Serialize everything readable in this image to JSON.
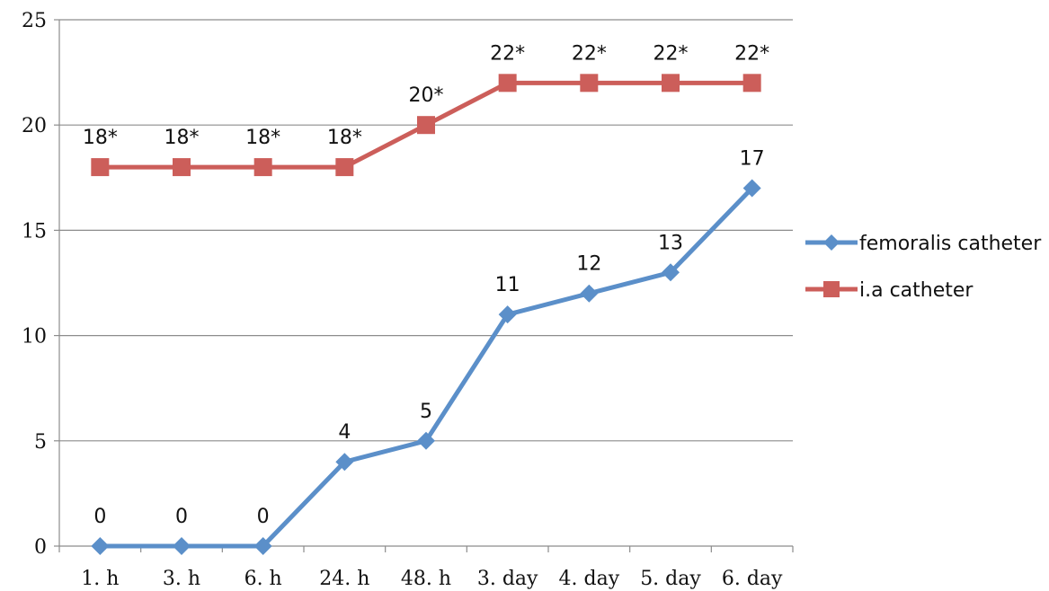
{
  "chart_data": {
    "type": "line",
    "title": "",
    "xlabel": "",
    "ylabel": "",
    "categories": [
      "1. h",
      "3. h",
      "6. h",
      "24. h",
      "48. h",
      "3. day",
      "4. day",
      "5. day",
      "6. day"
    ],
    "ylim": [
      0,
      25
    ],
    "yticks": [
      0,
      5,
      10,
      15,
      20,
      25
    ],
    "grid": true,
    "legend_position": "right",
    "series": [
      {
        "name": "femoralis catheter",
        "values": [
          0,
          0,
          0,
          4,
          5,
          11,
          12,
          13,
          17
        ],
        "labels": [
          "0",
          "0",
          "0",
          "4",
          "5",
          "11",
          "12",
          "13",
          "17"
        ],
        "color": "#5b8fc9",
        "marker": "diamond"
      },
      {
        "name": "i.a catheter",
        "values": [
          18,
          18,
          18,
          18,
          20,
          22,
          22,
          22,
          22
        ],
        "labels": [
          "18*",
          "18*",
          "18*",
          "18*",
          "20*",
          "22*",
          "22*",
          "22*",
          "22*"
        ],
        "color": "#cc5e5a",
        "marker": "square"
      }
    ]
  }
}
